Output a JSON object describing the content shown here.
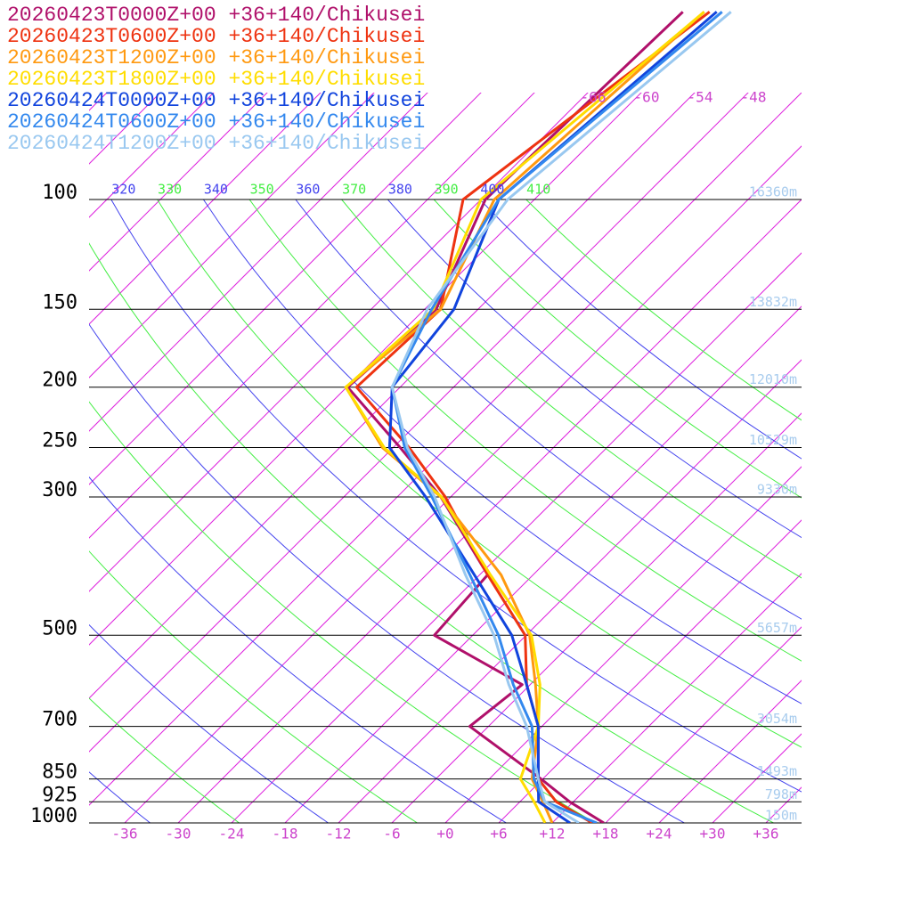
{
  "chart_data": {
    "type": "skewt",
    "levels": [
      1000,
      925,
      850,
      700,
      600,
      500,
      400,
      300,
      250,
      200,
      150,
      100,
      50
    ],
    "series": [
      {
        "name": "20260423T0000Z+00 +36+140/Chikusei",
        "color": "#b0106a",
        "values": [
          17.8,
          11.6,
          5.8,
          -8.1,
          -6.9,
          -22.3,
          -23.1,
          -37.1,
          -47.2,
          -59.9,
          -58.7,
          -65.5,
          -64.4
        ]
      },
      {
        "name": "20260423T0600Z+00 +36+140/Chikusei",
        "color": "#ee3311",
        "values": [
          16.5,
          10.1,
          5.5,
          -0.4,
          -6.4,
          -12.1,
          -23.1,
          -36.6,
          -46.2,
          -58.9,
          -58.2,
          -68,
          -61.4
        ]
      },
      {
        "name": "20260423T1200Z+00 +36+140/Chikusei",
        "color": "#ff9910",
        "values": [
          12,
          8.6,
          4.8,
          -0.4,
          -5.4,
          -11.6,
          -21.6,
          -37.1,
          -49.2,
          -60.1,
          -58.2,
          -64.5,
          -62
        ]
      },
      {
        "name": "20260423T1800Z+00 +36+140/Chikusei",
        "color": "#ffdd00",
        "values": [
          11.2,
          7.6,
          3.5,
          -0.4,
          -4.9,
          -11.4,
          -22.8,
          -37,
          -49,
          -60.1,
          -59,
          -66,
          -62
        ]
      },
      {
        "name": "20260424T0000Z+00 +36+140/Chikusei",
        "color": "#1144dd",
        "values": [
          14,
          8.1,
          5.5,
          -0.4,
          -6.4,
          -13.6,
          -24.6,
          -38.8,
          -48.4,
          -54.9,
          -56.7,
          -64,
          -60.6
        ]
      },
      {
        "name": "20260424T0600Z+00 +36+140/Chikusei",
        "color": "#3388ee",
        "values": [
          17,
          8.8,
          5,
          -1.1,
          -7.9,
          -15.1,
          -25.1,
          -38.1,
          -46.7,
          -54.9,
          -59.2,
          -64,
          -60
        ]
      },
      {
        "name": "20260424T1200Z+00 +36+140/Chikusei",
        "color": "#99c8f0",
        "values": [
          15,
          8.8,
          5.5,
          -1.7,
          -8.4,
          -15.6,
          -25.6,
          -37.8,
          -46.4,
          -54.9,
          -59.7,
          -63,
          -59
        ]
      }
    ],
    "ylim": [
      1000,
      100
    ],
    "yticks": [
      100,
      150,
      200,
      250,
      300,
      500,
      700,
      850,
      925,
      1000
    ],
    "height_labels": [
      "16360m",
      "13832m",
      "12010m",
      "10529m",
      "9330m",
      "5657m",
      "3054m",
      "1493m",
      "798m",
      "150m"
    ],
    "xlim": [
      -40,
      40
    ],
    "xticks": [
      -36,
      -30,
      -24,
      -18,
      -12,
      -6,
      {
        "value": 0,
        "label": "+0"
      },
      {
        "value": 6,
        "label": "+6"
      },
      {
        "value": 12,
        "label": "+12"
      },
      {
        "value": 18,
        "label": "+18"
      },
      {
        "value": 24,
        "label": "+24"
      },
      {
        "value": 30,
        "label": "+30"
      },
      {
        "value": 36,
        "label": "+36"
      }
    ],
    "isotherm_labels": [
      -66,
      -60,
      -54,
      -48
    ],
    "isotherm_color": "#dd22dd",
    "theta_labels": [
      320,
      330,
      340,
      350,
      360,
      370,
      380,
      390,
      400,
      410
    ],
    "theta_colors": [
      "#4444ee",
      "#44ee44"
    ]
  }
}
